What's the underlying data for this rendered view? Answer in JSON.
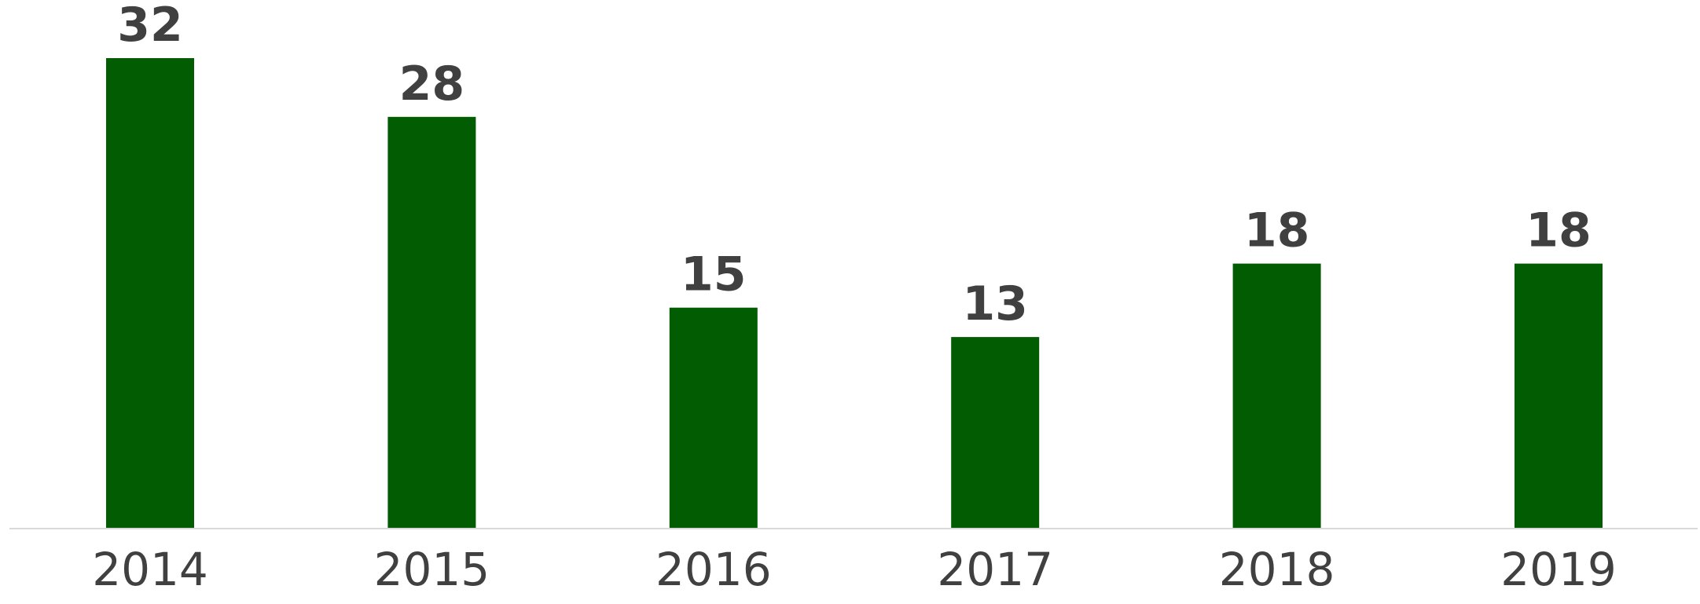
{
  "chart_data": {
    "type": "bar",
    "categories": [
      "2014",
      "2015",
      "2016",
      "2017",
      "2018",
      "2019"
    ],
    "values": [
      32,
      28,
      15,
      13,
      18,
      18
    ],
    "title": "",
    "xlabel": "",
    "ylabel": "",
    "ylim": [
      0,
      32
    ],
    "grid": false,
    "legend": "none",
    "data_labels": [
      "32",
      "28",
      "15",
      "13",
      "18",
      "18"
    ],
    "colors": {
      "bar": "#025c02",
      "text": "#404040",
      "axis": "#d9d9d9"
    }
  }
}
